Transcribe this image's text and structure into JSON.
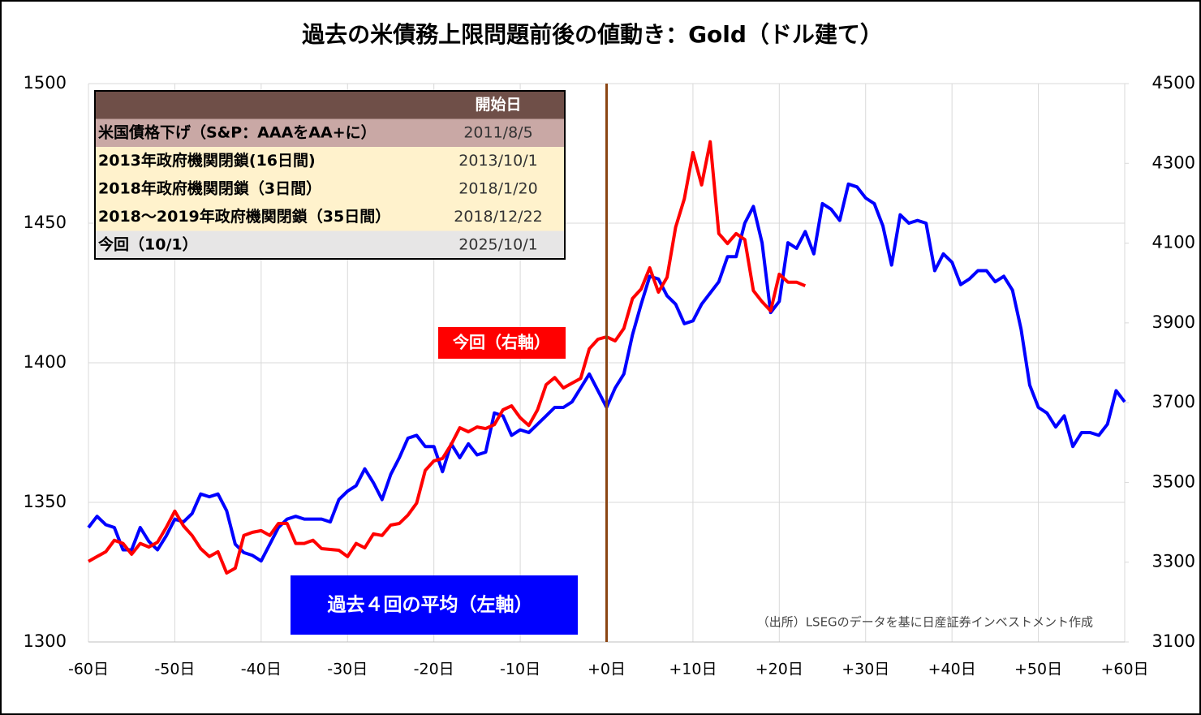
{
  "chart_data": {
    "type": "line",
    "title": "過去の米債務上限問題前後の値動き：Gold（ドル建て）",
    "x": [
      -60,
      -59,
      -58,
      -57,
      -56,
      -55,
      -54,
      -53,
      -52,
      -51,
      -50,
      -49,
      -48,
      -47,
      -46,
      -45,
      -44,
      -43,
      -42,
      -41,
      -40,
      -39,
      -38,
      -37,
      -36,
      -35,
      -34,
      -33,
      -32,
      -31,
      -30,
      -29,
      -28,
      -27,
      -26,
      -25,
      -24,
      -23,
      -22,
      -21,
      -20,
      -19,
      -18,
      -17,
      -16,
      -15,
      -14,
      -13,
      -12,
      -11,
      -10,
      -9,
      -8,
      -7,
      -6,
      -5,
      -4,
      -3,
      -2,
      -1,
      0,
      1,
      2,
      3,
      4,
      5,
      6,
      7,
      8,
      9,
      10,
      11,
      12,
      13,
      14,
      15,
      16,
      17,
      18,
      19,
      20,
      21,
      22,
      23,
      24,
      25,
      26,
      27,
      28,
      29,
      30,
      31,
      32,
      33,
      34,
      35,
      36,
      37,
      38,
      39,
      40,
      41,
      42,
      43,
      44,
      45,
      46,
      47,
      48,
      49,
      50,
      51,
      52,
      53,
      54,
      55,
      56,
      57,
      58,
      59,
      60
    ],
    "series": [
      {
        "name": "過去４回の平均（左軸）",
        "color": "#0000ff",
        "values": [
          1341,
          1345,
          1342,
          1341,
          1333,
          1333,
          1341,
          1336,
          1333,
          1338,
          1344,
          1343,
          1346,
          1353,
          1352,
          1353,
          1347,
          1335,
          1332,
          1331,
          1329,
          1335,
          1341,
          1344,
          1345,
          1344,
          1344,
          1344,
          1343,
          1351,
          1354,
          1356,
          1362,
          1357,
          1351,
          1360,
          1366,
          1373,
          1374,
          1370,
          1370,
          1361,
          1371,
          1366,
          1371,
          1367,
          1368,
          1382,
          1381,
          1374,
          1376,
          1375,
          1378,
          1381,
          1384,
          1384,
          1386,
          1391,
          1396,
          1390,
          1384,
          1391,
          1396,
          1410,
          1421,
          1431,
          1430,
          1424,
          1421,
          1414,
          1415,
          1421,
          1425,
          1429,
          1438,
          1438,
          1450,
          1456,
          1443,
          1418,
          1422,
          1443,
          1441,
          1447,
          1439,
          1457,
          1455,
          1451,
          1464,
          1463,
          1459,
          1457,
          1449,
          1435,
          1453,
          1450,
          1451,
          1450,
          1433,
          1439,
          1436,
          1428,
          1430,
          1433,
          1433,
          1429,
          1431,
          1426,
          1412,
          1392,
          1384,
          1382,
          1377,
          1381,
          1370,
          1375,
          1375,
          1374,
          1378,
          1390,
          1386
        ]
      },
      {
        "name": "今回（右軸）",
        "color": "#ff0000",
        "axis": "y2",
        "values": [
          3302,
          3314,
          3326,
          3355,
          3347,
          3320,
          3347,
          3338,
          3350,
          3387,
          3428,
          3391,
          3367,
          3334,
          3314,
          3326,
          3273,
          3285,
          3367,
          3375,
          3379,
          3367,
          3397,
          3397,
          3347,
          3347,
          3355,
          3334,
          3332,
          3330,
          3314,
          3347,
          3336,
          3371,
          3367,
          3393,
          3397,
          3418,
          3448,
          3530,
          3554,
          3560,
          3595,
          3637,
          3627,
          3639,
          3635,
          3645,
          3682,
          3692,
          3662,
          3643,
          3682,
          3745,
          3763,
          3737,
          3749,
          3761,
          3835,
          3859,
          3865,
          3855,
          3886,
          3961,
          3985,
          4038,
          3977,
          4014,
          4140,
          4211,
          4327,
          4246,
          4354,
          4124,
          4099,
          4124,
          4109,
          3981,
          3953,
          3930,
          4022,
          4002,
          4002,
          3993,
          null,
          null,
          null,
          null,
          null,
          null,
          null,
          null,
          null,
          null,
          null,
          null,
          null,
          null,
          null,
          null,
          null,
          null,
          null,
          null,
          null,
          null,
          null,
          null,
          null,
          null,
          null,
          null,
          null,
          null,
          null,
          null,
          null,
          null,
          null,
          null,
          null
        ]
      }
    ],
    "xlim": [
      -60,
      60
    ],
    "xticks": [
      {
        "value": -60,
        "label": "-60日"
      },
      {
        "value": -50,
        "label": "-50日"
      },
      {
        "value": -40,
        "label": "-40日"
      },
      {
        "value": -30,
        "label": "-30日"
      },
      {
        "value": -20,
        "label": "-20日"
      },
      {
        "value": -10,
        "label": "-10日"
      },
      {
        "value": 0,
        "label": "+0日"
      },
      {
        "value": 10,
        "label": "+10日"
      },
      {
        "value": 20,
        "label": "+20日"
      },
      {
        "value": 30,
        "label": "+30日"
      },
      {
        "value": 40,
        "label": "+40日"
      },
      {
        "value": 50,
        "label": "+50日"
      },
      {
        "value": 60,
        "label": "+60日"
      }
    ],
    "ylim": [
      1300,
      1500
    ],
    "yticks": [
      1300,
      1350,
      1400,
      1450,
      1500
    ],
    "y2lim": [
      3100,
      4500
    ],
    "y2ticks": [
      3100,
      3300,
      3500,
      3700,
      3900,
      4100,
      4300,
      4500
    ],
    "grid": true,
    "reference_line_x": 0,
    "reference_line_color": "#8b4513",
    "source_note": "（出所）LSEGのデータを基に日産証券インベストメント作成",
    "table": {
      "header": "開始日",
      "rows": [
        [
          "米国債格下げ（S&P：AAAをAA+に）",
          "2011/8/5"
        ],
        [
          "2013年政府機関閉鎖(16日間)",
          "2013/10/1"
        ],
        [
          "2018年政府機関閉鎖（3日間）",
          "2018/1/20"
        ],
        [
          "2018～2019年政府機関閉鎖（35日間）",
          "2018/12/22"
        ],
        [
          "今回（10/1）",
          "2025/10/1"
        ]
      ]
    }
  }
}
